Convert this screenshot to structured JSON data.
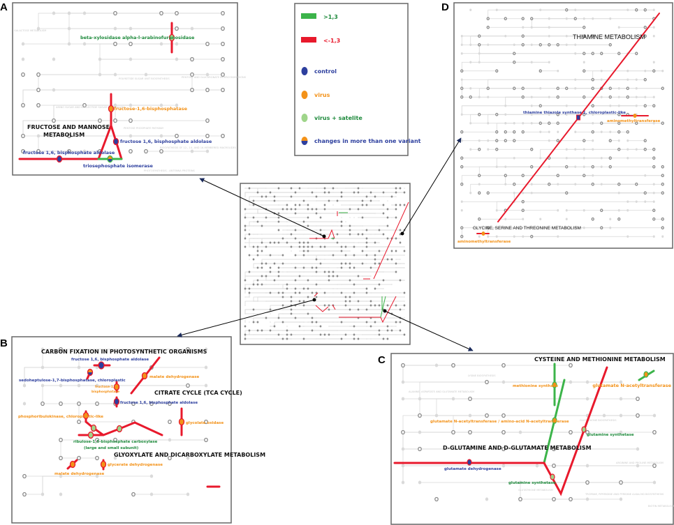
{
  "panel_labels": {
    "a": "A",
    "b": "B",
    "c": "C",
    "d": "D"
  },
  "legend": {
    "up": {
      "label": ">1,3",
      "color": "#3cb44a"
    },
    "down": {
      "label": "<-1,3",
      "color": "#e8192c"
    },
    "control": {
      "label": "control",
      "color": "#2d3f9e"
    },
    "virus": {
      "label": "virus",
      "color": "#f39219"
    },
    "virus_satellite": {
      "label": "virus + satelite",
      "color": "#9fd58a"
    },
    "multi": {
      "label": "changes in more than one variant"
    }
  },
  "panel_a": {
    "title_line1": "FRUCTOSE AND MANNOSE",
    "title_line2": "METABOLISM",
    "enzymes": {
      "beta_xylosidase": "beta-xylosidase alpha-l-arabinofuranosidase",
      "fbpase": "fructose-1,6-bisphosphatase",
      "aldolase_right": "fructose 1,6, bisphosphate aldolase",
      "aldolase_left": "fructose 1,6, bisphosphate aldolase",
      "tpi": "triosephosphate isomerase"
    },
    "faint": [
      "GALACTOSE METABOLISM",
      "POLYKETIDE SUGAR UNIT BIOSYNTHESIS",
      "PENTOSE AND GLUCURONATE INTERCONVERSIONS",
      "AMINO SUGAR AND NUCLEOTIDE SUGAR METABOLISM",
      "PENTOSE PHOSPHATE PATHWAY",
      "BIOSYNTHESIS OF 12-, 14- AND 16-MEMBERED MACROLIDES",
      "PHOTOSYNTHESIS - ANTENNA PROTEINS"
    ]
  },
  "panel_b": {
    "title_carbon": "CARBON FIXATION IN PHOTOSYNTHETIC ORGANISMS",
    "title_tca": "CITRATE CYCLE (TCA CYCLE)",
    "title_glyox": "GLYOXYLATE AND DICARBOXYLATE METABOLISM",
    "enzymes": {
      "aldolase_top": "fructose 1,6, bisphosphate aldolase",
      "sedoheptulose": "sedoheptulose-1,7-bisphosphatase, chloroplastic",
      "fbpase_1": "fructose-1,6",
      "fbpase_2": "bisphosphatase",
      "malate_dh_top": "malate dehydrogenase",
      "aldolase_mid": "fructose 1,6, bisphosphate aldolase",
      "prk": "phosphoribulokinase, chloroplastic-like",
      "glycolate": "glycolate oxidase",
      "rubisco_1": "ribulose-1,5-bisphosphate carboxylase",
      "rubisco_2": "(large and small subunit)",
      "glycerate": "glycerate dehydrogenase",
      "malate_dh_bottom": "malate dehydrogenase"
    }
  },
  "panel_c": {
    "title_cys": "CYSTEINE AND METHIONINE METABOLISM",
    "title_glu": "D-GLUTAMINE AND D-GLUTAMATE METABOLISM",
    "enzymes": {
      "met_synthase": "methionine synthase",
      "nat_amino": "glutamate N-acetyltransferase / amino-acid N-acetyltransferase",
      "nat_right": "glutamate N-acetyltransferase",
      "gs_upper": "glutamine synthetase",
      "gs_lower": "glutamine synthetase",
      "gdh": "glutamate dehydrogenase"
    },
    "faint": [
      "LYSINE BIOSYNTHESIS",
      "ALANINE, ASPARTATE AND GLUTAMATE METABOLISM",
      "GLUTATHIONE BIOSYNTHESIS",
      "ARGININE AND PROLINE METABOLISM",
      "GLUTATHIONE METABOLISM",
      "TROPANE, PIPERIDINE AND PYRIDINE ALKALOID BIOSYNTHESIS",
      "BIOTIN METABOLISM"
    ]
  },
  "panel_d": {
    "title_thiamine": "THIAMINE METABOLISM",
    "title_glycine": "GLYCINE, SERINE AND THREONINE METABOLISM",
    "enzymes": {
      "thiazole": "thiamine thiazole synthase 1, chloroplastic-like",
      "amt_right": "aminomethyltransferase",
      "amt_left": "aminomethyltransferase"
    }
  }
}
